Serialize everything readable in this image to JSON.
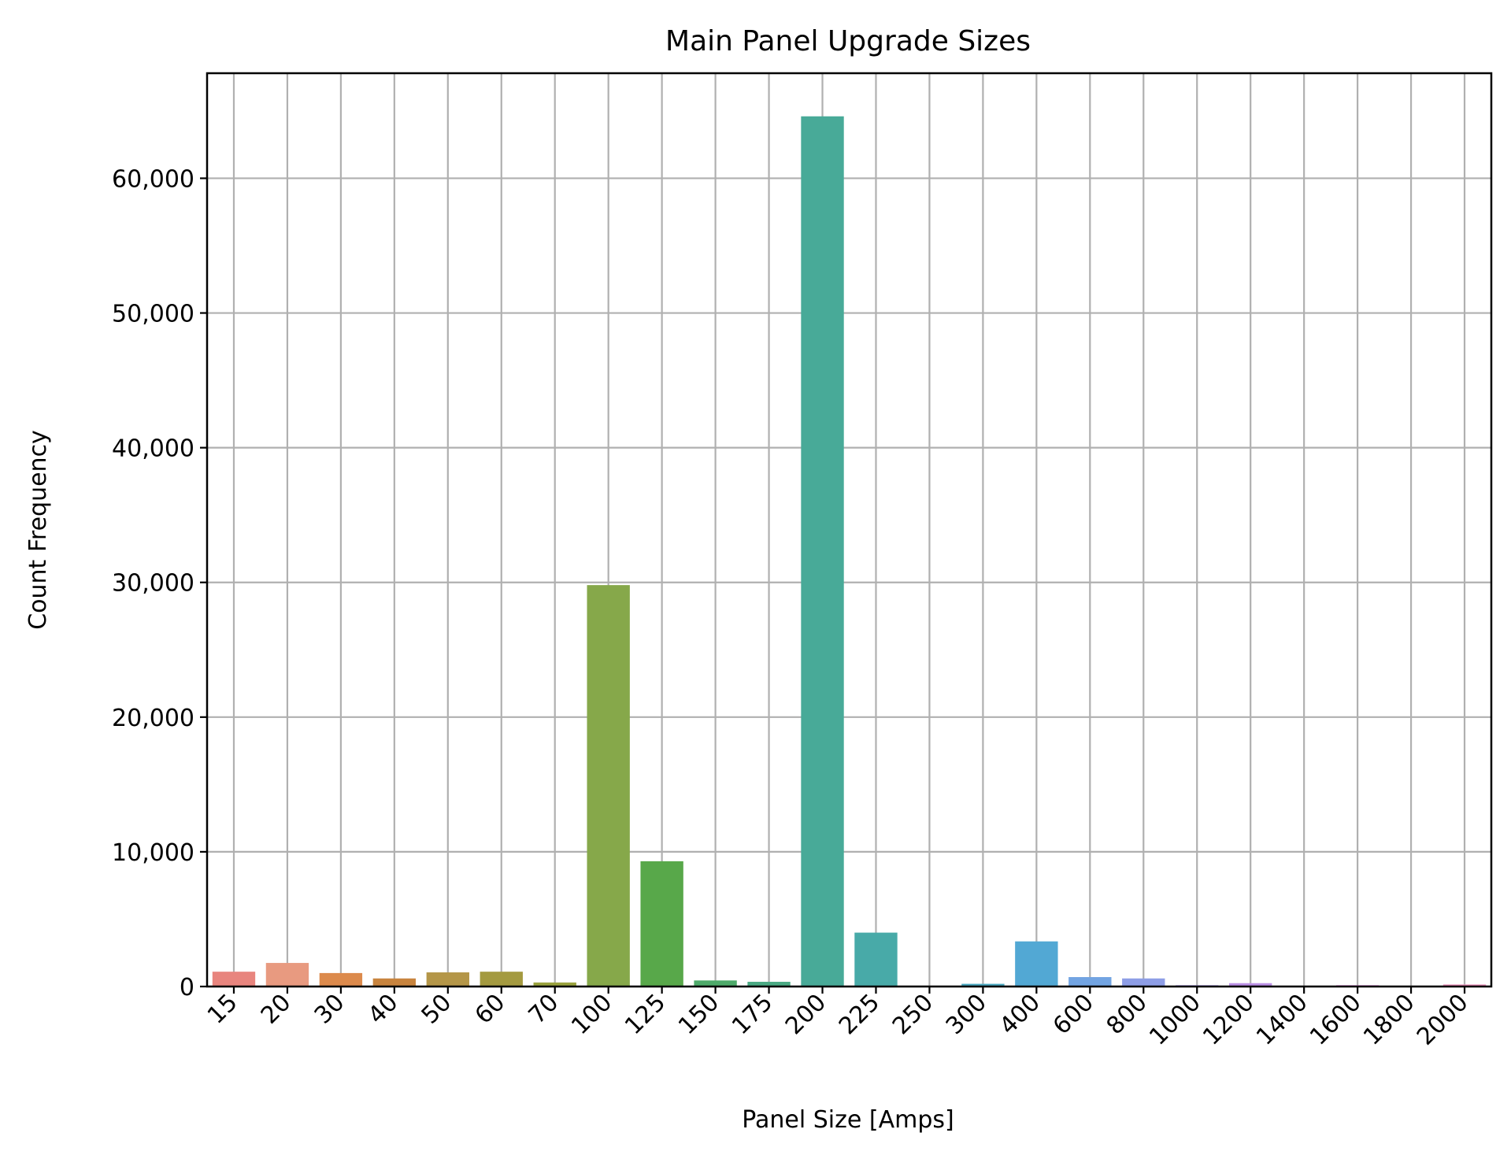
{
  "chart_data": {
    "type": "bar",
    "title": "Main Panel Upgrade Sizes",
    "xlabel": "Panel Size [Amps]",
    "ylabel": "Count Frequency",
    "categories": [
      "15",
      "20",
      "30",
      "40",
      "50",
      "60",
      "70",
      "100",
      "125",
      "150",
      "175",
      "200",
      "225",
      "250",
      "300",
      "400",
      "600",
      "800",
      "1000",
      "1200",
      "1400",
      "1600",
      "1800",
      "2000"
    ],
    "values": [
      1100,
      1750,
      1000,
      600,
      1050,
      1100,
      300,
      29800,
      9300,
      450,
      350,
      64600,
      4000,
      50,
      200,
      3350,
      700,
      600,
      100,
      250,
      50,
      100,
      50,
      150
    ],
    "colors": [
      "#e8857e",
      "#e89a80",
      "#dc8a4c",
      "#c8843e",
      "#b49648",
      "#a49a40",
      "#9aa23e",
      "#86a84a",
      "#58a84a",
      "#4eaa6a",
      "#4aaa84",
      "#48aa98",
      "#48aaa8",
      "#48a8b4",
      "#4aa8c0",
      "#52a8d4",
      "#72a4e2",
      "#8e9ee6",
      "#a696e8",
      "#bc90e6",
      "#cc8ae0",
      "#d886d6",
      "#e284c6",
      "#e888b4"
    ],
    "y_ticks": [
      0,
      10000,
      20000,
      30000,
      40000,
      50000,
      60000
    ],
    "y_tick_labels": [
      "0",
      "10,000",
      "20,000",
      "30,000",
      "40,000",
      "50,000",
      "60,000"
    ],
    "ylim": [
      0,
      67800
    ],
    "grid": true,
    "legend": "none"
  }
}
